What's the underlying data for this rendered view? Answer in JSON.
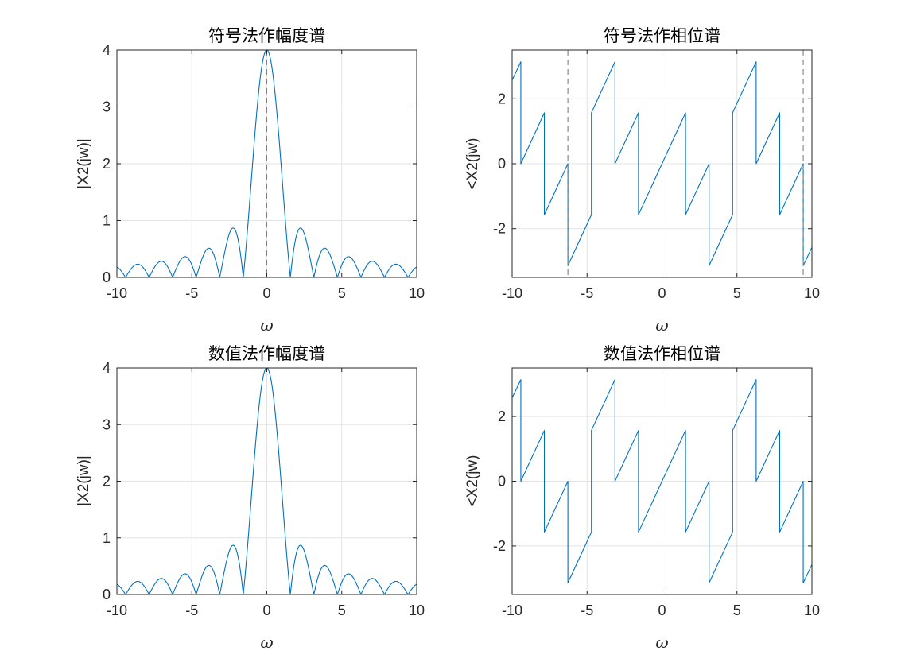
{
  "colors": {
    "series": "#0072BD",
    "axis": "#262626",
    "grid": "#e3e3e3",
    "reference_line": "#808080"
  },
  "chart_data": [
    {
      "type": "line",
      "title": "符号法作幅度谱",
      "xlabel": "ω",
      "ylabel": "|X2(jw)|",
      "xlim": [
        -10,
        10
      ],
      "ylim": [
        0,
        4
      ],
      "xticks": [
        -10,
        -5,
        0,
        5,
        10
      ],
      "yticks": [
        0,
        1,
        2,
        3,
        4
      ],
      "xtick_labels": [
        "-10",
        "-5",
        "0",
        "5",
        "10"
      ],
      "ytick_labels": [
        "0",
        "1",
        "2",
        "3",
        "4"
      ],
      "grid": true,
      "series": [
        {
          "function": "|4·sin(2ω)/(2ω)|",
          "peak": [
            0,
            4
          ],
          "zeros": [
            -9.42,
            -7.85,
            -6.28,
            -4.71,
            -3.14,
            -1.57,
            1.57,
            3.14,
            4.71,
            6.28,
            7.85,
            9.42
          ]
        }
      ],
      "reference_lines": [
        {
          "x": 0,
          "style": "dashed"
        }
      ]
    },
    {
      "type": "line",
      "title": "符号法作相位谱",
      "xlabel": "ω",
      "ylabel": "<X2(jw)",
      "xlim": [
        -10,
        10
      ],
      "ylim": [
        -3.5,
        3.5
      ],
      "xticks": [
        -10,
        -5,
        0,
        5,
        10
      ],
      "yticks": [
        -2,
        0,
        2
      ],
      "xtick_labels": [
        "-10",
        "-5",
        "0",
        "5",
        "10"
      ],
      "ytick_labels": [
        "-2",
        "0",
        "2"
      ],
      "grid": true,
      "series": [
        {
          "segments": [
            [
              [
                -10,
                2.575
              ],
              [
                -9.42,
                3.14
              ]
            ],
            [
              [
                -9.42,
                0
              ],
              [
                -7.85,
                1.57
              ]
            ],
            [
              [
                -7.85,
                -1.57
              ],
              [
                -6.28,
                0
              ]
            ],
            [
              [
                -6.28,
                -3.14
              ],
              [
                -4.71,
                -1.57
              ]
            ],
            [
              [
                -4.71,
                1.57
              ],
              [
                -3.14,
                3.14
              ]
            ],
            [
              [
                -3.14,
                0
              ],
              [
                -1.57,
                1.57
              ]
            ],
            [
              [
                -1.57,
                -1.57
              ],
              [
                1.57,
                1.57
              ]
            ],
            [
              [
                1.57,
                -1.57
              ],
              [
                3.14,
                0
              ]
            ],
            [
              [
                3.14,
                -3.14
              ],
              [
                4.71,
                -1.57
              ]
            ],
            [
              [
                4.71,
                1.57
              ],
              [
                6.28,
                3.14
              ]
            ],
            [
              [
                6.28,
                0
              ],
              [
                7.85,
                1.57
              ]
            ],
            [
              [
                7.85,
                -1.57
              ],
              [
                9.42,
                0
              ]
            ],
            [
              [
                9.42,
                -3.14
              ],
              [
                10,
                -2.575
              ]
            ]
          ]
        }
      ],
      "reference_lines": [
        {
          "x": -6.28,
          "style": "dashed"
        },
        {
          "x": 9.42,
          "style": "dashed"
        }
      ]
    },
    {
      "type": "line",
      "title": "数值法作幅度谱",
      "xlabel": "ω",
      "ylabel": "|X2(jw)|",
      "xlim": [
        -10,
        10
      ],
      "ylim": [
        0,
        4
      ],
      "xticks": [
        -10,
        -5,
        0,
        5,
        10
      ],
      "yticks": [
        0,
        1,
        2,
        3,
        4
      ],
      "xtick_labels": [
        "-10",
        "-5",
        "0",
        "5",
        "10"
      ],
      "ytick_labels": [
        "0",
        "1",
        "2",
        "3",
        "4"
      ],
      "grid": true,
      "series": [
        {
          "function": "|4·sin(2ω)/(2ω)|",
          "peak": [
            0,
            4
          ],
          "zeros": [
            -9.42,
            -7.85,
            -6.28,
            -4.71,
            -3.14,
            -1.57,
            1.57,
            3.14,
            4.71,
            6.28,
            7.85,
            9.42
          ]
        }
      ],
      "reference_lines": []
    },
    {
      "type": "line",
      "title": "数值法作相位谱",
      "xlabel": "ω",
      "ylabel": "<X2(jw)",
      "xlim": [
        -10,
        10
      ],
      "ylim": [
        -3.5,
        3.5
      ],
      "xticks": [
        -10,
        -5,
        0,
        5,
        10
      ],
      "yticks": [
        -2,
        0,
        2
      ],
      "xtick_labels": [
        "-10",
        "-5",
        "0",
        "5",
        "10"
      ],
      "ytick_labels": [
        "-2",
        "0",
        "2"
      ],
      "grid": true,
      "series": [
        {
          "segments": [
            [
              [
                -10,
                2.575
              ],
              [
                -9.42,
                3.14
              ]
            ],
            [
              [
                -9.42,
                0
              ],
              [
                -7.85,
                1.57
              ]
            ],
            [
              [
                -7.85,
                -1.57
              ],
              [
                -6.28,
                0
              ]
            ],
            [
              [
                -6.28,
                -3.14
              ],
              [
                -4.71,
                -1.57
              ]
            ],
            [
              [
                -4.71,
                1.57
              ],
              [
                -3.14,
                3.14
              ]
            ],
            [
              [
                -3.14,
                0
              ],
              [
                -1.57,
                1.57
              ]
            ],
            [
              [
                -1.57,
                -1.57
              ],
              [
                1.57,
                1.57
              ]
            ],
            [
              [
                1.57,
                -1.57
              ],
              [
                3.14,
                0
              ]
            ],
            [
              [
                3.14,
                -3.14
              ],
              [
                4.71,
                -1.57
              ]
            ],
            [
              [
                4.71,
                1.57
              ],
              [
                6.28,
                3.14
              ]
            ],
            [
              [
                6.28,
                0
              ],
              [
                7.85,
                1.57
              ]
            ],
            [
              [
                7.85,
                -1.57
              ],
              [
                9.42,
                0
              ]
            ],
            [
              [
                9.42,
                -3.14
              ],
              [
                10,
                -2.575
              ]
            ]
          ]
        }
      ],
      "reference_lines": []
    }
  ]
}
